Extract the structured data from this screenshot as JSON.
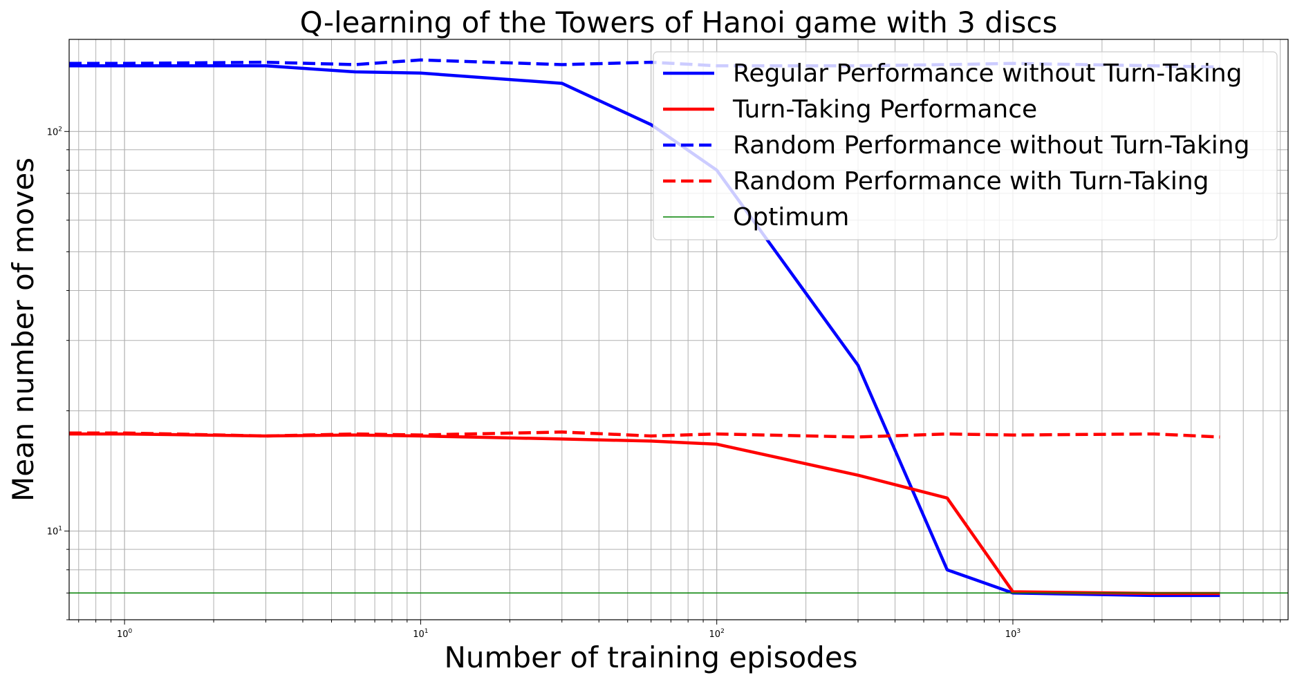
{
  "chart_data": {
    "type": "line",
    "title": "Q-learning of the Towers of Hanoi game with 3 discs",
    "xlabel": "Number of training episodes",
    "ylabel": "Mean number of moves",
    "xscale": "log",
    "yscale": "log",
    "xlim": [
      0.65,
      8500
    ],
    "ylim": [
      6,
      170
    ],
    "grid": true,
    "legend_position": "top-right",
    "x_ticks": [
      {
        "value": 1,
        "base": "10",
        "exp": "0"
      },
      {
        "value": 10,
        "base": "10",
        "exp": "1"
      },
      {
        "value": 100,
        "base": "10",
        "exp": "2"
      },
      {
        "value": 1000,
        "base": "10",
        "exp": "3"
      }
    ],
    "y_ticks": [
      {
        "value": 10,
        "base": "10",
        "exp": "1"
      },
      {
        "value": 100,
        "base": "10",
        "exp": "2"
      }
    ],
    "series": [
      {
        "name": "Regular Performance without Turn-Taking",
        "color": "#0000ff",
        "style": "solid",
        "width": 4.5,
        "x": [
          0.65,
          1,
          3,
          6,
          10,
          30,
          60,
          100,
          300,
          600,
          1000,
          3000,
          5000
        ],
        "y": [
          146,
          146,
          146,
          141,
          140,
          132,
          104,
          80,
          26,
          8.0,
          7.0,
          6.9,
          6.9
        ]
      },
      {
        "name": "Turn-Taking Performance",
        "color": "#ff0000",
        "style": "solid",
        "width": 4.5,
        "x": [
          0.65,
          1,
          3,
          6,
          10,
          30,
          60,
          100,
          300,
          600,
          1000,
          3000,
          5000
        ],
        "y": [
          17.5,
          17.5,
          17.3,
          17.4,
          17.3,
          17.0,
          16.8,
          16.5,
          13.8,
          12.1,
          7.05,
          6.98,
          6.98
        ]
      },
      {
        "name": "Random Performance without Turn-Taking",
        "color": "#0000ff",
        "style": "dashed",
        "width": 4.5,
        "x": [
          0.65,
          1,
          3,
          6,
          10,
          30,
          60,
          100,
          300,
          600,
          1000,
          3000,
          5000
        ],
        "y": [
          148,
          148,
          149,
          147,
          151,
          147,
          149,
          146,
          146,
          147,
          148,
          146,
          145
        ]
      },
      {
        "name": "Random Performance with Turn-Taking",
        "color": "#ff0000",
        "style": "dashed",
        "width": 4.5,
        "x": [
          0.65,
          1,
          3,
          6,
          10,
          30,
          60,
          100,
          300,
          600,
          1000,
          3000,
          5000
        ],
        "y": [
          17.6,
          17.6,
          17.3,
          17.5,
          17.4,
          17.7,
          17.3,
          17.5,
          17.2,
          17.5,
          17.4,
          17.5,
          17.2
        ]
      },
      {
        "name": "Optimum",
        "color": "#008000",
        "style": "solid",
        "width": 1.5,
        "x": [
          0.65,
          8500
        ],
        "y": [
          7,
          7
        ]
      }
    ]
  }
}
